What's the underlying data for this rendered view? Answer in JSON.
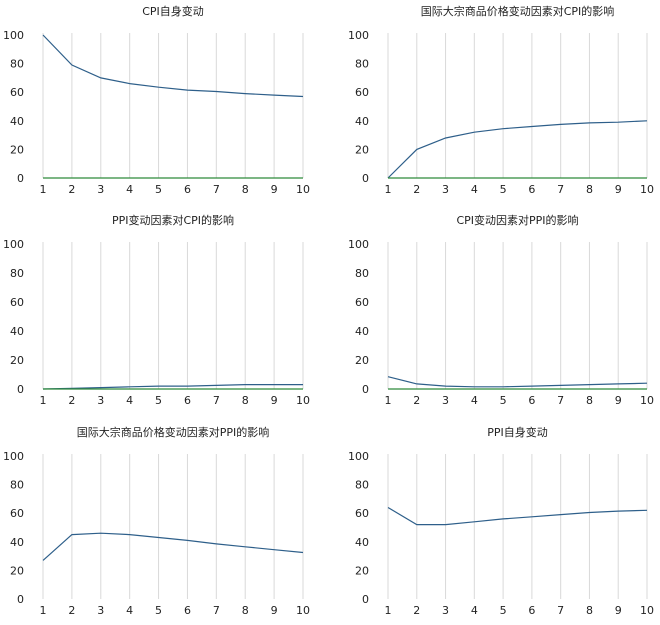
{
  "chart_data": [
    {
      "type": "line",
      "title": "CPI自身变动",
      "x": [
        1,
        2,
        3,
        4,
        5,
        6,
        7,
        8,
        9,
        10
      ],
      "ylim": [
        0,
        100
      ],
      "yticks": [
        0,
        20,
        40,
        60,
        80,
        100
      ],
      "grid": "vertical",
      "series": [
        {
          "color": "#2e5f8a",
          "values": [
            100,
            79,
            70,
            66,
            63.5,
            61.5,
            60.5,
            59,
            58,
            57
          ]
        },
        {
          "color": "#2e8b3a",
          "values": [
            0,
            0,
            0,
            0,
            0,
            0,
            0,
            0,
            0,
            0
          ]
        }
      ]
    },
    {
      "type": "line",
      "title": "国际大宗商品价格变动因素对CPI的影响",
      "x": [
        1,
        2,
        3,
        4,
        5,
        6,
        7,
        8,
        9,
        10
      ],
      "ylim": [
        0,
        100
      ],
      "yticks": [
        0,
        20,
        40,
        60,
        80,
        100
      ],
      "grid": "vertical",
      "series": [
        {
          "color": "#2e5f8a",
          "values": [
            0,
            20,
            28,
            32,
            34.5,
            36,
            37.5,
            38.5,
            39,
            40
          ]
        },
        {
          "color": "#2e8b3a",
          "values": [
            0,
            0,
            0,
            0,
            0,
            0,
            0,
            0,
            0,
            0
          ]
        }
      ]
    },
    {
      "type": "line",
      "title": "PPI变动因素对CPI的影响",
      "x": [
        1,
        2,
        3,
        4,
        5,
        6,
        7,
        8,
        9,
        10
      ],
      "ylim": [
        0,
        100
      ],
      "yticks": [
        0,
        20,
        40,
        60,
        80,
        100
      ],
      "grid": "vertical",
      "series": [
        {
          "color": "#2e5f8a",
          "values": [
            0,
            0.5,
            1,
            1.5,
            2,
            2,
            2.5,
            3,
            3,
            3
          ]
        },
        {
          "color": "#2e8b3a",
          "values": [
            0,
            0,
            0,
            0,
            0,
            0,
            0,
            0,
            0,
            0
          ]
        }
      ]
    },
    {
      "type": "line",
      "title": "CPI变动因素对PPI的影响",
      "x": [
        1,
        2,
        3,
        4,
        5,
        6,
        7,
        8,
        9,
        10
      ],
      "ylim": [
        0,
        100
      ],
      "yticks": [
        0,
        20,
        40,
        60,
        80,
        100
      ],
      "grid": "vertical",
      "series": [
        {
          "color": "#2e5f8a",
          "values": [
            8.5,
            3.5,
            2,
            1.5,
            1.5,
            2,
            2.5,
            3,
            3.5,
            4
          ]
        },
        {
          "color": "#2e8b3a",
          "values": [
            0,
            0,
            0,
            0,
            0,
            0,
            0,
            0,
            0,
            0
          ]
        }
      ]
    },
    {
      "type": "line",
      "title": "国际大宗商品价格变动因素对PPI的影响",
      "x": [
        1,
        2,
        3,
        4,
        5,
        6,
        7,
        8,
        9,
        10
      ],
      "ylim": [
        0,
        100
      ],
      "yticks": [
        0,
        20,
        40,
        60,
        80,
        100
      ],
      "grid": "vertical",
      "series": [
        {
          "color": "#2e5f8a",
          "values": [
            27,
            45,
            46,
            45,
            43,
            41,
            38.5,
            36.5,
            34.5,
            32.5
          ]
        }
      ]
    },
    {
      "type": "line",
      "title": "PPI自身变动",
      "x": [
        1,
        2,
        3,
        4,
        5,
        6,
        7,
        8,
        9,
        10
      ],
      "ylim": [
        0,
        100
      ],
      "yticks": [
        0,
        20,
        40,
        60,
        80,
        100
      ],
      "grid": "vertical",
      "series": [
        {
          "color": "#2e5f8a",
          "values": [
            64,
            52,
            52,
            54,
            56,
            57.5,
            59,
            60.5,
            61.5,
            62
          ]
        }
      ]
    }
  ]
}
